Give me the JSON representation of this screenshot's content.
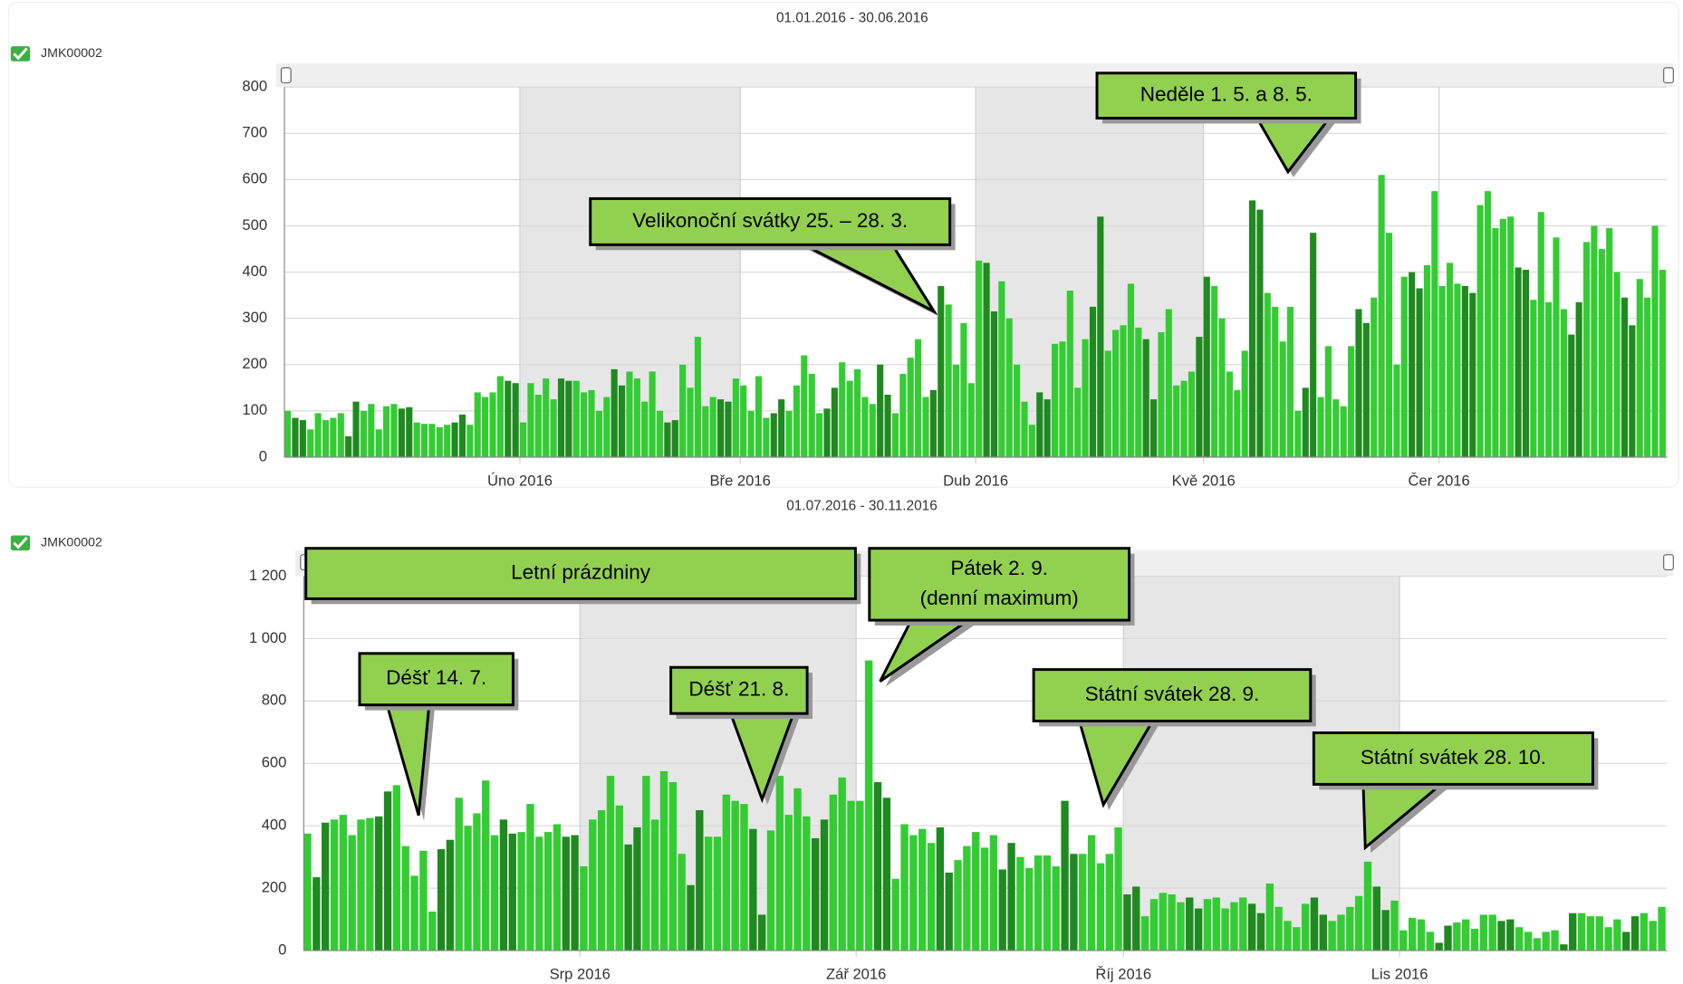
{
  "chart_data": [
    {
      "type": "bar",
      "title": "01.01.2016 - 30.06.2016",
      "legend": "JMK00002",
      "xlim": [
        0,
        182
      ],
      "xticks": [
        {
          "value": 31,
          "label": "Úno 2016"
        },
        {
          "value": 60,
          "label": "Bře 2016"
        },
        {
          "value": 91,
          "label": "Dub 2016"
        },
        {
          "value": 121,
          "label": "Kvě 2016"
        },
        {
          "value": 152,
          "label": "Čer 2016"
        }
      ],
      "ylim": [
        0,
        800
      ],
      "yticks": [
        0,
        100,
        200,
        300,
        400,
        500,
        600,
        700,
        800
      ],
      "grid": true,
      "values": [
        100,
        85,
        80,
        60,
        95,
        80,
        85,
        95,
        45,
        120,
        100,
        115,
        60,
        110,
        115,
        105,
        108,
        75,
        72,
        72,
        65,
        70,
        75,
        92,
        70,
        140,
        130,
        140,
        175,
        165,
        160,
        75,
        160,
        135,
        170,
        125,
        170,
        165,
        165,
        140,
        145,
        100,
        130,
        190,
        155,
        185,
        170,
        120,
        185,
        100,
        75,
        80,
        200,
        150,
        260,
        110,
        130,
        125,
        120,
        170,
        155,
        100,
        175,
        85,
        95,
        125,
        100,
        155,
        220,
        180,
        95,
        105,
        150,
        205,
        165,
        190,
        130,
        115,
        200,
        135,
        95,
        180,
        215,
        255,
        130,
        145,
        370,
        330,
        200,
        290,
        160,
        425,
        420,
        315,
        380,
        300,
        200,
        120,
        70,
        140,
        125,
        245,
        250,
        360,
        150,
        255,
        325,
        520,
        230,
        275,
        285,
        375,
        280,
        255,
        125,
        270,
        320,
        155,
        165,
        185,
        260,
        390,
        370,
        300,
        185,
        145,
        230,
        555,
        535,
        355,
        325,
        250,
        325,
        100,
        150,
        485,
        130,
        240,
        125,
        110,
        240,
        320,
        290,
        345,
        610,
        485,
        200,
        390,
        400,
        365,
        415,
        575,
        370,
        420,
        375,
        370,
        355,
        545,
        575,
        495,
        515,
        520,
        410,
        405,
        340,
        530,
        335,
        475,
        320,
        265,
        335,
        465,
        500,
        450,
        495,
        400,
        345,
        285,
        385,
        345,
        500,
        405
      ],
      "colors": [
        "#33cc33",
        "#1f8a1f",
        "#1f8a1f",
        "#33cc33",
        "#33cc33",
        "#33cc33",
        "#33cc33",
        "#33cc33",
        "#1f8a1f",
        "#1f8a1f",
        "#33cc33",
        "#33cc33",
        "#33cc33",
        "#33cc33",
        "#33cc33",
        "#1f8a1f",
        "#1f8a1f",
        "#33cc33",
        "#33cc33",
        "#33cc33",
        "#33cc33",
        "#33cc33",
        "#1f8a1f",
        "#1f8a1f",
        "#33cc33",
        "#33cc33",
        "#33cc33",
        "#33cc33",
        "#33cc33",
        "#1f8a1f",
        "#1f8a1f",
        "#33cc33",
        "#33cc33",
        "#33cc33",
        "#33cc33",
        "#33cc33",
        "#1f8a1f",
        "#1f8a1f",
        "#33cc33",
        "#33cc33",
        "#33cc33",
        "#33cc33",
        "#33cc33",
        "#1f8a1f",
        "#1f8a1f",
        "#33cc33",
        "#33cc33",
        "#33cc33",
        "#33cc33",
        "#33cc33",
        "#1f8a1f",
        "#1f8a1f",
        "#33cc33",
        "#33cc33",
        "#33cc33",
        "#33cc33",
        "#33cc33",
        "#1f8a1f",
        "#1f8a1f",
        "#33cc33",
        "#33cc33",
        "#33cc33",
        "#33cc33",
        "#33cc33",
        "#1f8a1f",
        "#1f8a1f",
        "#33cc33",
        "#33cc33",
        "#33cc33",
        "#33cc33",
        "#33cc33",
        "#1f8a1f",
        "#1f8a1f",
        "#33cc33",
        "#33cc33",
        "#33cc33",
        "#33cc33",
        "#33cc33",
        "#1f8a1f",
        "#1f8a1f",
        "#33cc33",
        "#33cc33",
        "#33cc33",
        "#33cc33",
        "#33cc33",
        "#1f8a1f",
        "#1f8a1f",
        "#33cc33",
        "#33cc33",
        "#33cc33",
        "#33cc33",
        "#33cc33",
        "#1f8a1f",
        "#1f8a1f",
        "#33cc33",
        "#33cc33",
        "#33cc33",
        "#33cc33",
        "#33cc33",
        "#1f8a1f",
        "#1f8a1f",
        "#33cc33",
        "#33cc33",
        "#33cc33",
        "#33cc33",
        "#33cc33",
        "#1f8a1f",
        "#1f8a1f",
        "#33cc33",
        "#33cc33",
        "#33cc33",
        "#33cc33",
        "#33cc33",
        "#1f8a1f",
        "#1f8a1f",
        "#33cc33",
        "#33cc33",
        "#33cc33",
        "#33cc33",
        "#33cc33",
        "#1f8a1f",
        "#1f8a1f",
        "#33cc33",
        "#33cc33",
        "#33cc33",
        "#33cc33",
        "#33cc33",
        "#1f8a1f",
        "#1f8a1f",
        "#33cc33",
        "#33cc33",
        "#33cc33",
        "#33cc33",
        "#33cc33",
        "#1f8a1f",
        "#1f8a1f",
        "#33cc33",
        "#33cc33",
        "#33cc33",
        "#33cc33",
        "#33cc33",
        "#1f8a1f",
        "#1f8a1f",
        "#33cc33",
        "#33cc33",
        "#33cc33",
        "#33cc33",
        "#33cc33",
        "#1f8a1f",
        "#1f8a1f",
        "#33cc33",
        "#33cc33",
        "#33cc33",
        "#33cc33",
        "#33cc33",
        "#1f8a1f",
        "#1f8a1f",
        "#33cc33",
        "#33cc33",
        "#33cc33",
        "#33cc33",
        "#33cc33",
        "#1f8a1f",
        "#1f8a1f",
        "#33cc33",
        "#33cc33",
        "#33cc33",
        "#33cc33",
        "#33cc33",
        "#1f8a1f",
        "#1f8a1f",
        "#33cc33",
        "#33cc33",
        "#33cc33",
        "#33cc33",
        "#33cc33",
        "#1f8a1f",
        "#1f8a1f",
        "#33cc33",
        "#33cc33",
        "#33cc33",
        "#33cc33"
      ],
      "annotations": [
        {
          "lines": [
            "Neděle 1. 5. a 8. 5."
          ]
        },
        {
          "lines": [
            "Velikonoční svátky 25. – 28. 3."
          ]
        }
      ]
    },
    {
      "type": "bar",
      "title": "01.07.2016 - 30.11.2016",
      "legend": "JMK00002",
      "xlim": [
        0,
        153
      ],
      "xticks": [
        {
          "value": 31,
          "label": "Srp 2016"
        },
        {
          "value": 62,
          "label": "Zář 2016"
        },
        {
          "value": 92,
          "label": "Říj 2016"
        },
        {
          "value": 123,
          "label": "Lis 2016"
        }
      ],
      "ylim": [
        0,
        1200
      ],
      "yticks": [
        0,
        200,
        400,
        600,
        800,
        {
          "value": 1000,
          "label": "1 000"
        },
        {
          "value": 1200,
          "label": "1 200"
        }
      ],
      "grid": true,
      "values": [
        375,
        235,
        410,
        420,
        435,
        370,
        420,
        425,
        430,
        510,
        530,
        335,
        240,
        320,
        125,
        325,
        355,
        490,
        400,
        440,
        545,
        370,
        420,
        375,
        380,
        470,
        365,
        380,
        405,
        365,
        370,
        270,
        420,
        450,
        560,
        465,
        340,
        395,
        560,
        420,
        575,
        540,
        310,
        210,
        450,
        365,
        365,
        500,
        480,
        470,
        390,
        115,
        385,
        560,
        435,
        520,
        430,
        360,
        420,
        500,
        555,
        480,
        480,
        930,
        540,
        490,
        230,
        405,
        370,
        390,
        345,
        395,
        250,
        290,
        335,
        380,
        330,
        370,
        260,
        345,
        300,
        265,
        305,
        305,
        270,
        480,
        310,
        310,
        370,
        280,
        310,
        395,
        180,
        205,
        110,
        165,
        185,
        180,
        155,
        170,
        135,
        165,
        170,
        135,
        155,
        170,
        150,
        120,
        215,
        140,
        95,
        75,
        150,
        170,
        115,
        95,
        115,
        140,
        175,
        285,
        205,
        130,
        160,
        65,
        105,
        100,
        60,
        25,
        80,
        90,
        100,
        70,
        115,
        115,
        95,
        100,
        75,
        60,
        40,
        60,
        65,
        20,
        120,
        120,
        110,
        110,
        75,
        100,
        60,
        110,
        120,
        95,
        140
      ],
      "colors": [
        "#33cc33",
        "#1f8a1f",
        "#1f8a1f",
        "#33cc33",
        "#33cc33",
        "#33cc33",
        "#33cc33",
        "#33cc33",
        "#1f8a1f",
        "#1f8a1f",
        "#33cc33",
        "#33cc33",
        "#33cc33",
        "#33cc33",
        "#33cc33",
        "#1f8a1f",
        "#1f8a1f",
        "#33cc33",
        "#33cc33",
        "#33cc33",
        "#33cc33",
        "#33cc33",
        "#1f8a1f",
        "#1f8a1f",
        "#33cc33",
        "#33cc33",
        "#33cc33",
        "#33cc33",
        "#33cc33",
        "#1f8a1f",
        "#1f8a1f",
        "#33cc33",
        "#33cc33",
        "#33cc33",
        "#33cc33",
        "#33cc33",
        "#1f8a1f",
        "#1f8a1f",
        "#33cc33",
        "#33cc33",
        "#33cc33",
        "#33cc33",
        "#33cc33",
        "#1f8a1f",
        "#1f8a1f",
        "#33cc33",
        "#33cc33",
        "#33cc33",
        "#33cc33",
        "#33cc33",
        "#1f8a1f",
        "#1f8a1f",
        "#33cc33",
        "#33cc33",
        "#33cc33",
        "#33cc33",
        "#33cc33",
        "#1f8a1f",
        "#1f8a1f",
        "#33cc33",
        "#33cc33",
        "#33cc33",
        "#33cc33",
        "#33cc33",
        "#1f8a1f",
        "#1f8a1f",
        "#33cc33",
        "#33cc33",
        "#33cc33",
        "#33cc33",
        "#33cc33",
        "#1f8a1f",
        "#1f8a1f",
        "#33cc33",
        "#33cc33",
        "#33cc33",
        "#33cc33",
        "#33cc33",
        "#1f8a1f",
        "#1f8a1f",
        "#33cc33",
        "#33cc33",
        "#33cc33",
        "#33cc33",
        "#33cc33",
        "#1f8a1f",
        "#1f8a1f",
        "#33cc33",
        "#33cc33",
        "#33cc33",
        "#33cc33",
        "#33cc33",
        "#1f8a1f",
        "#1f8a1f",
        "#33cc33",
        "#33cc33",
        "#33cc33",
        "#33cc33",
        "#33cc33",
        "#1f8a1f",
        "#1f8a1f",
        "#33cc33",
        "#33cc33",
        "#33cc33",
        "#33cc33",
        "#33cc33",
        "#1f8a1f",
        "#1f8a1f",
        "#33cc33",
        "#33cc33",
        "#33cc33",
        "#33cc33",
        "#33cc33",
        "#1f8a1f",
        "#1f8a1f",
        "#33cc33",
        "#33cc33",
        "#33cc33",
        "#33cc33",
        "#33cc33",
        "#1f8a1f",
        "#1f8a1f",
        "#33cc33",
        "#33cc33",
        "#33cc33",
        "#33cc33",
        "#33cc33",
        "#1f8a1f",
        "#1f8a1f",
        "#33cc33",
        "#33cc33",
        "#33cc33",
        "#33cc33",
        "#33cc33",
        "#1f8a1f",
        "#1f8a1f",
        "#33cc33",
        "#33cc33",
        "#33cc33",
        "#33cc33",
        "#33cc33",
        "#1f8a1f",
        "#1f8a1f",
        "#33cc33",
        "#33cc33",
        "#33cc33",
        "#33cc33",
        "#33cc33",
        "#1f8a1f",
        "#1f8a1f",
        "#33cc33",
        "#33cc33",
        "#33cc33"
      ],
      "annotations": [
        {
          "lines": [
            "Letní prázdniny"
          ]
        },
        {
          "lines": [
            "Pátek 2. 9.",
            "(denní maximum)"
          ]
        },
        {
          "lines": [
            "Déšť 14. 7."
          ]
        },
        {
          "lines": [
            "Déšť 21. 8."
          ]
        },
        {
          "lines": [
            "Státní svátek 28. 9."
          ]
        },
        {
          "lines": [
            "Státní svátek 28. 10."
          ]
        }
      ]
    }
  ]
}
